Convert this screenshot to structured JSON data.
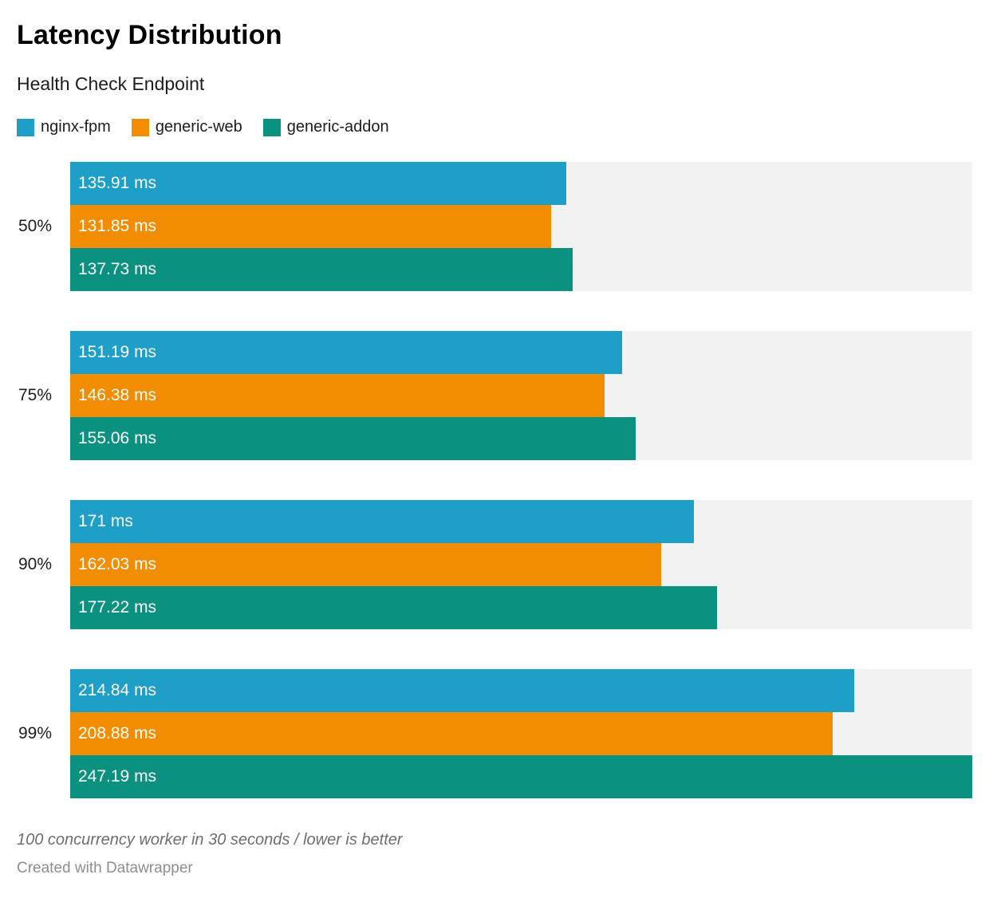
{
  "header": {
    "title": "Latency Distribution",
    "subtitle": "Health Check Endpoint"
  },
  "legend": {
    "items": [
      {
        "label": "nginx-fpm",
        "color": "#1d9fc8"
      },
      {
        "label": "generic-web",
        "color": "#f28c00"
      },
      {
        "label": "generic-addon",
        "color": "#0a9180"
      }
    ]
  },
  "colors": {
    "track": "#f2f2f2",
    "background": "#ffffff",
    "bar_label_text": "#ffffff"
  },
  "chart_data": {
    "type": "bar",
    "orientation": "horizontal",
    "title": "Latency Distribution",
    "subtitle": "Health Check Endpoint",
    "xlabel": "",
    "ylabel": "",
    "xlim": [
      0,
      247.19
    ],
    "grid": false,
    "legend_position": "top",
    "value_suffix": " ms",
    "categories": [
      "50%",
      "75%",
      "90%",
      "99%"
    ],
    "series": [
      {
        "name": "nginx-fpm",
        "color": "#1d9fc8",
        "values": [
          135.91,
          151.19,
          171,
          214.84
        ]
      },
      {
        "name": "generic-web",
        "color": "#f28c00",
        "values": [
          131.85,
          146.38,
          162.03,
          208.88
        ]
      },
      {
        "name": "generic-addon",
        "color": "#0a9180",
        "values": [
          137.73,
          155.06,
          177.22,
          247.19
        ]
      }
    ],
    "groups": [
      {
        "category": "50%",
        "bars": [
          {
            "series": "nginx-fpm",
            "value": 135.91,
            "label": "135.91 ms"
          },
          {
            "series": "generic-web",
            "value": 131.85,
            "label": "131.85 ms"
          },
          {
            "series": "generic-addon",
            "value": 137.73,
            "label": "137.73 ms"
          }
        ]
      },
      {
        "category": "75%",
        "bars": [
          {
            "series": "nginx-fpm",
            "value": 151.19,
            "label": "151.19 ms"
          },
          {
            "series": "generic-web",
            "value": 146.38,
            "label": "146.38 ms"
          },
          {
            "series": "generic-addon",
            "value": 155.06,
            "label": "155.06 ms"
          }
        ]
      },
      {
        "category": "90%",
        "bars": [
          {
            "series": "nginx-fpm",
            "value": 171,
            "label": "171 ms"
          },
          {
            "series": "generic-web",
            "value": 162.03,
            "label": "162.03 ms"
          },
          {
            "series": "generic-addon",
            "value": 177.22,
            "label": "177.22 ms"
          }
        ]
      },
      {
        "category": "99%",
        "bars": [
          {
            "series": "nginx-fpm",
            "value": 214.84,
            "label": "214.84 ms"
          },
          {
            "series": "generic-web",
            "value": 208.88,
            "label": "208.88 ms"
          },
          {
            "series": "generic-addon",
            "value": 247.19,
            "label": "247.19 ms"
          }
        ]
      }
    ]
  },
  "footer": {
    "note": "100 concurrency worker in 30 seconds / lower is better",
    "credit": "Created with Datawrapper"
  }
}
